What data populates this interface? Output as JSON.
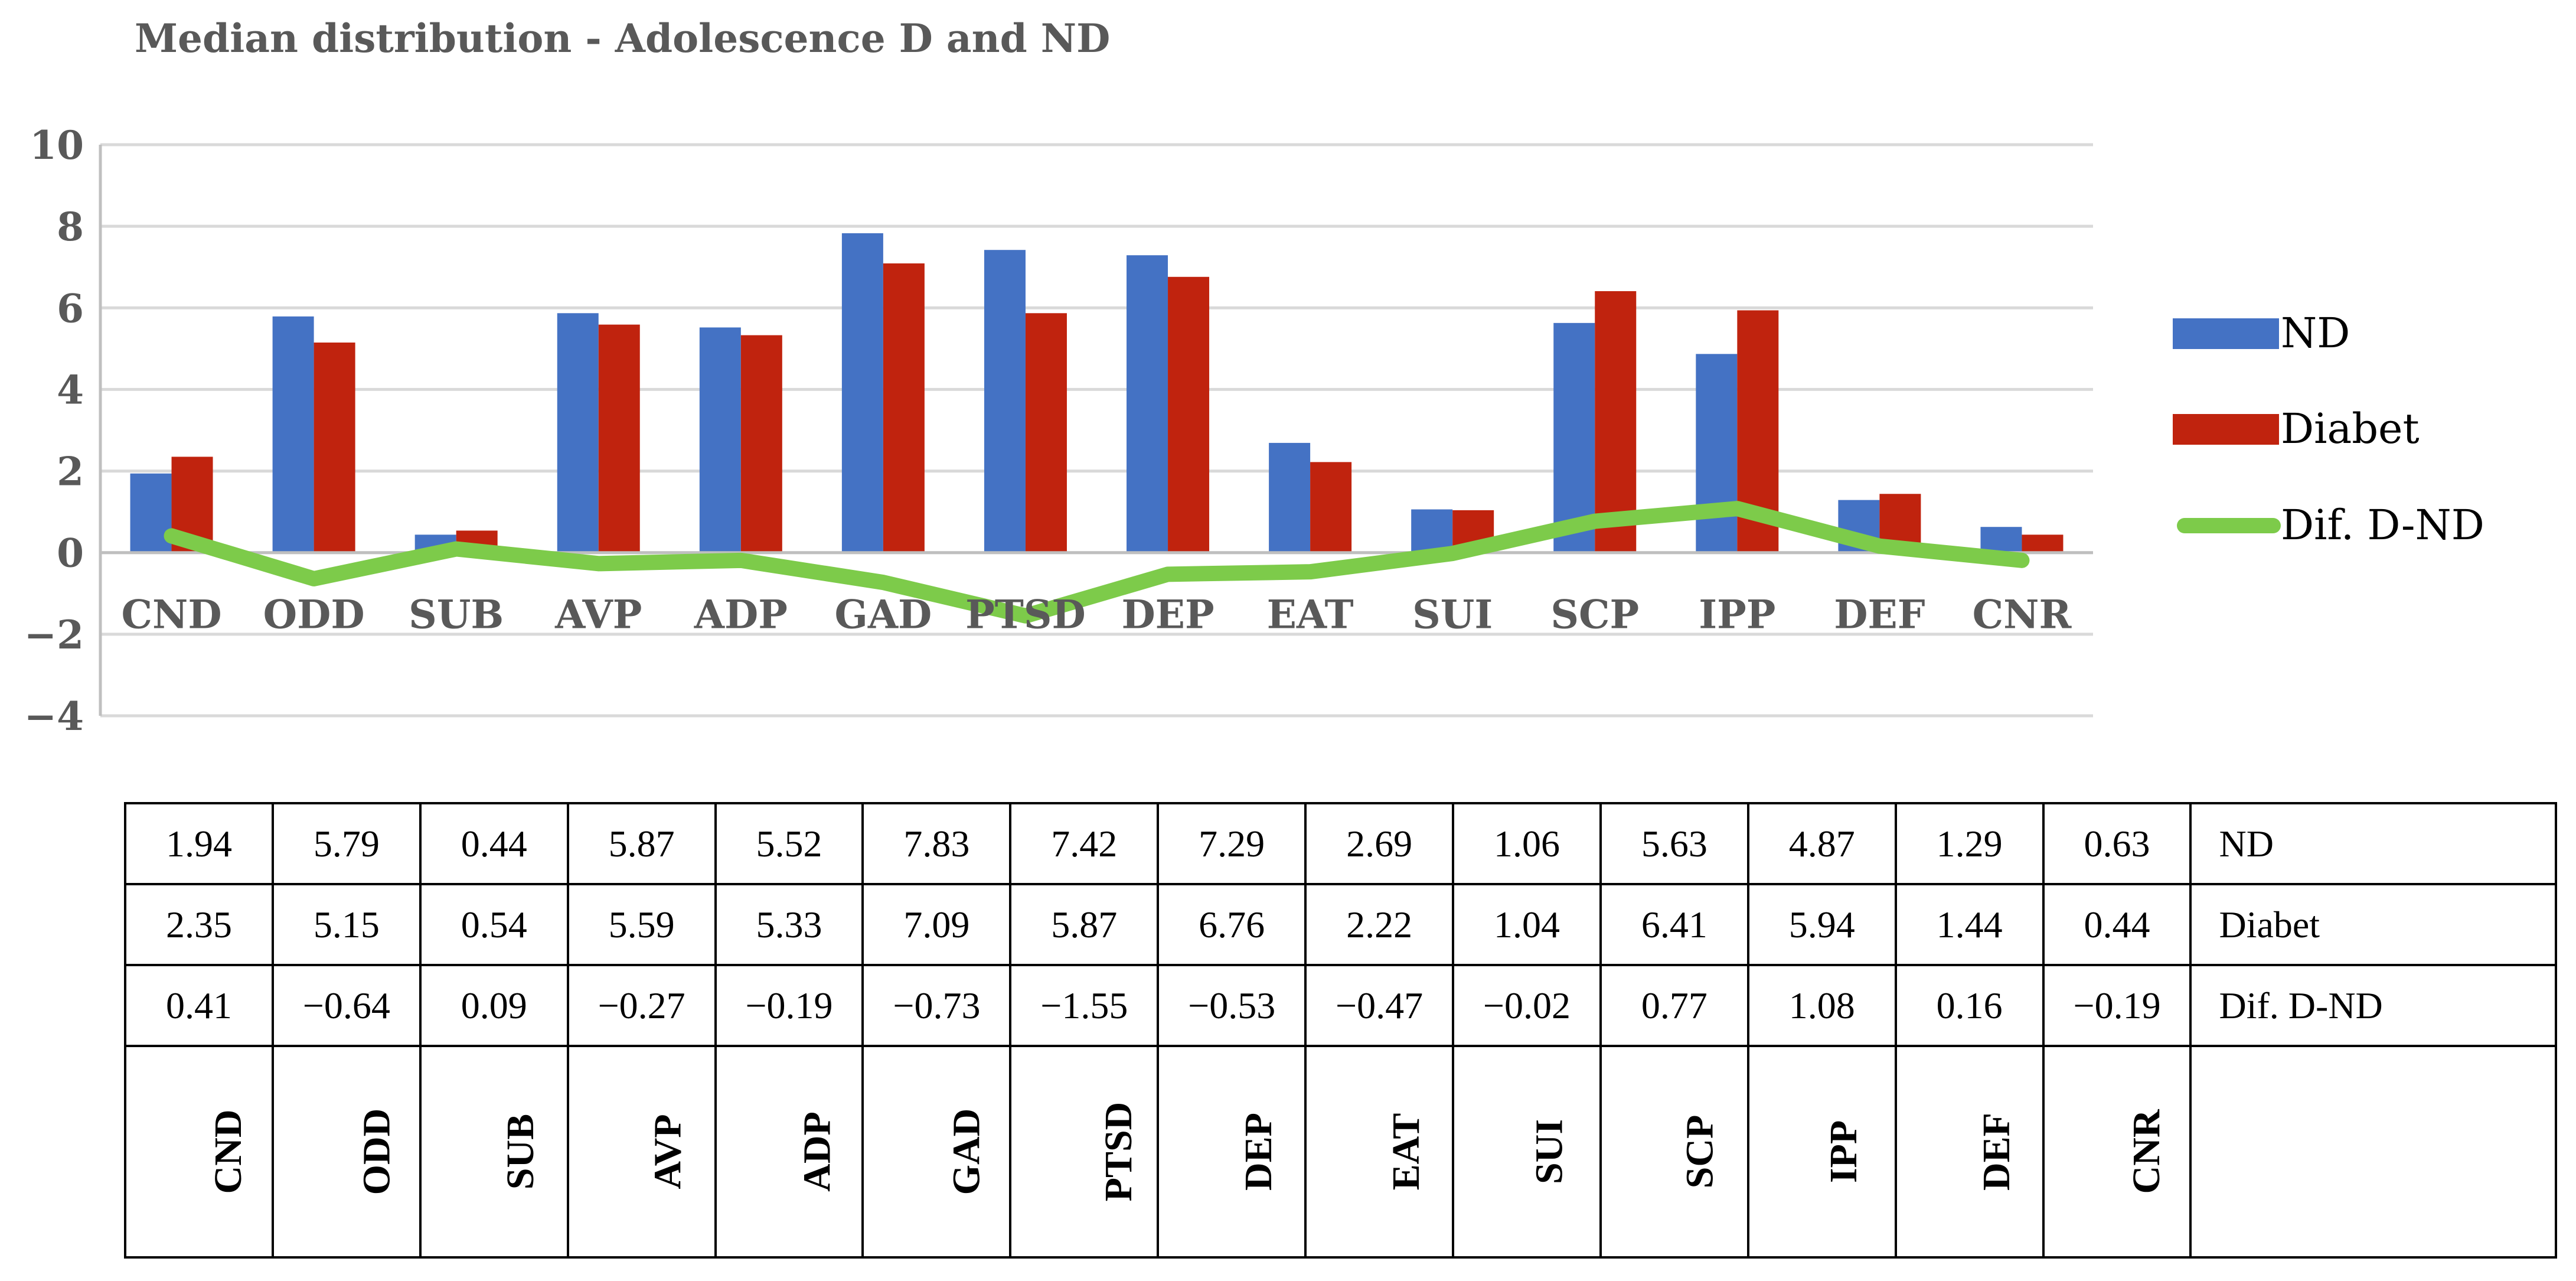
{
  "chart_data": {
    "type": "bar",
    "title": "Median distribution - Adolescence D and ND",
    "categories": [
      "CND",
      "ODD",
      "SUB",
      "AVP",
      "ADP",
      "GAD",
      "PTSD",
      "DEP",
      "EAT",
      "SUI",
      "SCP",
      "IPP",
      "DEF",
      "CNR"
    ],
    "series": [
      {
        "name": "ND",
        "type": "bar",
        "color": "#4472C4",
        "values": [
          1.94,
          5.79,
          0.44,
          5.87,
          5.52,
          7.83,
          7.42,
          7.29,
          2.69,
          1.06,
          5.63,
          4.87,
          1.29,
          0.63
        ]
      },
      {
        "name": "Diabet",
        "type": "bar",
        "color": "#C0230E",
        "values": [
          2.35,
          5.15,
          0.54,
          5.59,
          5.33,
          7.09,
          5.87,
          6.76,
          2.22,
          1.04,
          6.41,
          5.94,
          1.44,
          0.44
        ]
      },
      {
        "name": "Dif. D-ND",
        "type": "line",
        "color": "#7DCB4A",
        "values": [
          0.41,
          -0.64,
          0.09,
          -0.27,
          -0.19,
          -0.73,
          -1.55,
          -0.53,
          -0.47,
          -0.02,
          0.77,
          1.08,
          0.16,
          -0.19
        ]
      }
    ],
    "yticks": [
      10,
      8,
      6,
      4,
      2,
      0,
      -2,
      -4
    ],
    "ylim": [
      -4,
      10
    ],
    "grid": true,
    "legend": "right",
    "xlabel": "",
    "ylabel": ""
  },
  "table": {
    "rows": [
      {
        "name": "ND",
        "cells": [
          "1.94",
          "5.79",
          "0.44",
          "5.87",
          "5.52",
          "7.83",
          "7.42",
          "7.29",
          "2.69",
          "1.06",
          "5.63",
          "4.87",
          "1.29",
          "0.63"
        ]
      },
      {
        "name": "Diabet",
        "cells": [
          "2.35",
          "5.15",
          "0.54",
          "5.59",
          "5.33",
          "7.09",
          "5.87",
          "6.76",
          "2.22",
          "1.04",
          "6.41",
          "5.94",
          "1.44",
          "0.44"
        ]
      },
      {
        "name": "Dif. D-ND",
        "cells": [
          "0.41",
          "−0.64",
          "0.09",
          "−0.27",
          "−0.19",
          "−0.73",
          "−1.55",
          "−0.53",
          "−0.47",
          "−0.02",
          "0.77",
          "1.08",
          "0.16",
          "−0.19"
        ]
      }
    ],
    "headers": [
      "CND",
      "ODD",
      "SUB",
      "AVP",
      "ADP",
      "GAD",
      "PTSD",
      "DEP",
      "EAT",
      "SUI",
      "SCP",
      "IPP",
      "DEF",
      "CNR"
    ],
    "corner": ""
  }
}
